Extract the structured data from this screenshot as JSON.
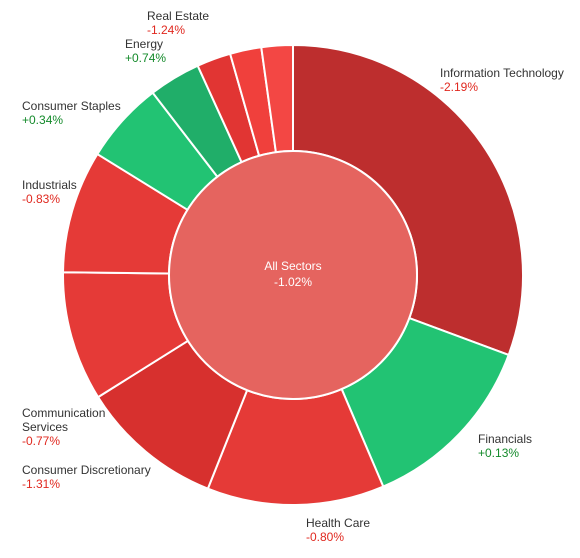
{
  "chart_data": {
    "type": "sunburst",
    "center": {
      "label": "All Sectors",
      "value": "-1.02%",
      "color": "#e5645f"
    },
    "sectors": [
      {
        "name": [
          "Information Technology"
        ],
        "value_label": "-2.19%",
        "weight": 32.0,
        "color": "#bd2e2e",
        "value_color": "#e0281f"
      },
      {
        "name": [
          "Financials"
        ],
        "value_label": "+0.13%",
        "weight": 13.5,
        "color": "#22c373",
        "value_color": "#138a2a"
      },
      {
        "name": [
          "Health Care"
        ],
        "value_label": "-0.80%",
        "weight": 13.0,
        "color": "#e53a37",
        "value_color": "#e0281f"
      },
      {
        "name": [
          "Consumer Discretionary"
        ],
        "value_label": "-1.31%",
        "weight": 10.5,
        "color": "#d7302e",
        "value_color": "#e0281f"
      },
      {
        "name": [
          "Communication",
          "Services"
        ],
        "value_label": "-0.77%",
        "weight": 9.5,
        "color": "#e53a37",
        "value_color": "#e0281f"
      },
      {
        "name": [
          "Industrials"
        ],
        "value_label": "-0.83%",
        "weight": 9.0,
        "color": "#e53a37",
        "value_color": "#e0281f"
      },
      {
        "name": [
          "Consumer Staples"
        ],
        "value_label": "+0.34%",
        "weight": 6.0,
        "color": "#22c373",
        "value_color": "#138a2a"
      },
      {
        "name": [
          "Energy"
        ],
        "value_label": "+0.74%",
        "weight": 3.8,
        "color": "#20ae69",
        "value_color": "#138a2a"
      },
      {
        "name": [
          "Real Estate"
        ],
        "value_label": "-1.24%",
        "weight": 2.5,
        "color": "#e13533",
        "value_color": "#e0281f"
      },
      {
        "name": [],
        "value_label": "",
        "weight": 2.3,
        "color": "#f0403c",
        "value_color": "#e0281f"
      },
      {
        "name": [],
        "value_label": "",
        "weight": 2.3,
        "color": "#f34744",
        "value_color": "#e0281f"
      }
    ]
  }
}
